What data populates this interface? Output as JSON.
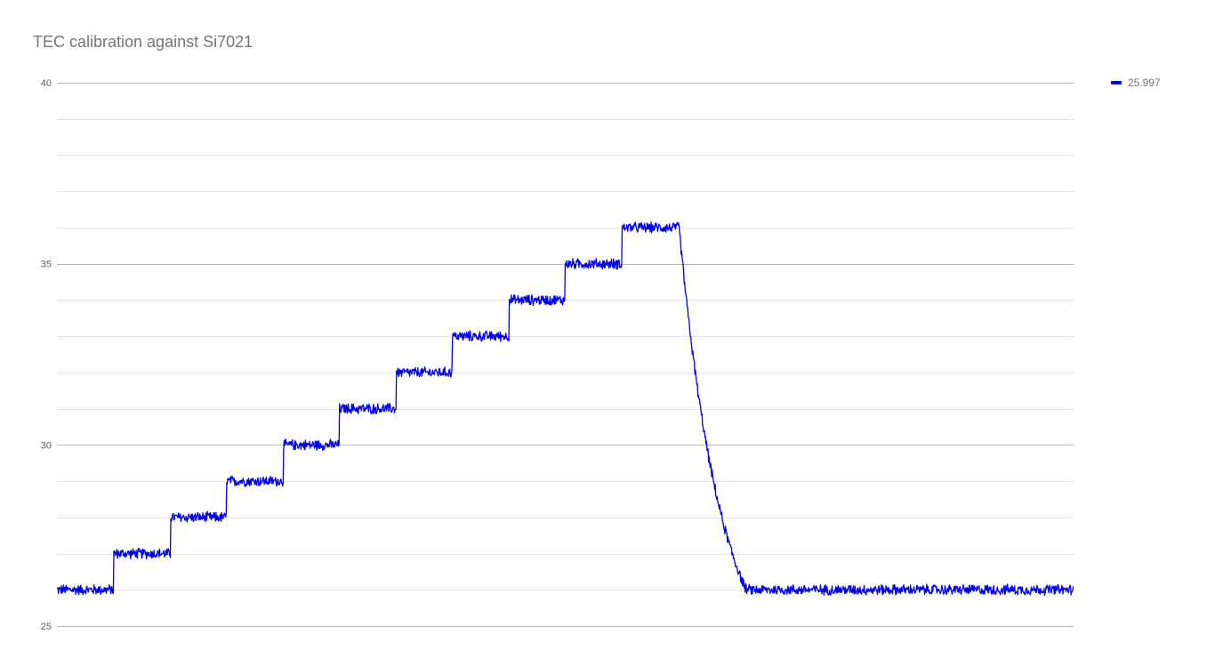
{
  "chart_data": {
    "type": "line",
    "title": "TEC calibration against Si7021",
    "xlabel": "",
    "ylabel": "",
    "ylim": [
      25,
      40
    ],
    "y_ticks": [
      "25",
      "30",
      "35",
      "40"
    ],
    "minor_gridlines_per_major": 5,
    "grid": true,
    "legend_position": "right",
    "x_samples": 1000,
    "series": [
      {
        "name": "25.997",
        "color": "#0000ee",
        "noise_amplitude": 0.15,
        "segments": [
          {
            "kind": "step",
            "from": 0,
            "to": 56,
            "level": 26
          },
          {
            "kind": "step",
            "from": 56,
            "to": 112,
            "level": 27
          },
          {
            "kind": "step",
            "from": 112,
            "to": 167,
            "level": 28
          },
          {
            "kind": "step",
            "from": 167,
            "to": 223,
            "level": 29
          },
          {
            "kind": "step",
            "from": 223,
            "to": 278,
            "level": 30
          },
          {
            "kind": "step",
            "from": 278,
            "to": 334,
            "level": 31
          },
          {
            "kind": "step",
            "from": 334,
            "to": 389,
            "level": 32
          },
          {
            "kind": "step",
            "from": 389,
            "to": 445,
            "level": 33
          },
          {
            "kind": "step",
            "from": 445,
            "to": 500,
            "level": 34
          },
          {
            "kind": "step",
            "from": 500,
            "to": 556,
            "level": 35
          },
          {
            "kind": "step",
            "from": 556,
            "to": 612,
            "level": 36
          },
          {
            "kind": "decay",
            "from": 612,
            "to": 678,
            "start": 36,
            "end": 26
          },
          {
            "kind": "step",
            "from": 678,
            "to": 1000,
            "level": 26
          }
        ]
      }
    ],
    "legend": {
      "label": "25.997",
      "color": "#0000ee"
    }
  }
}
